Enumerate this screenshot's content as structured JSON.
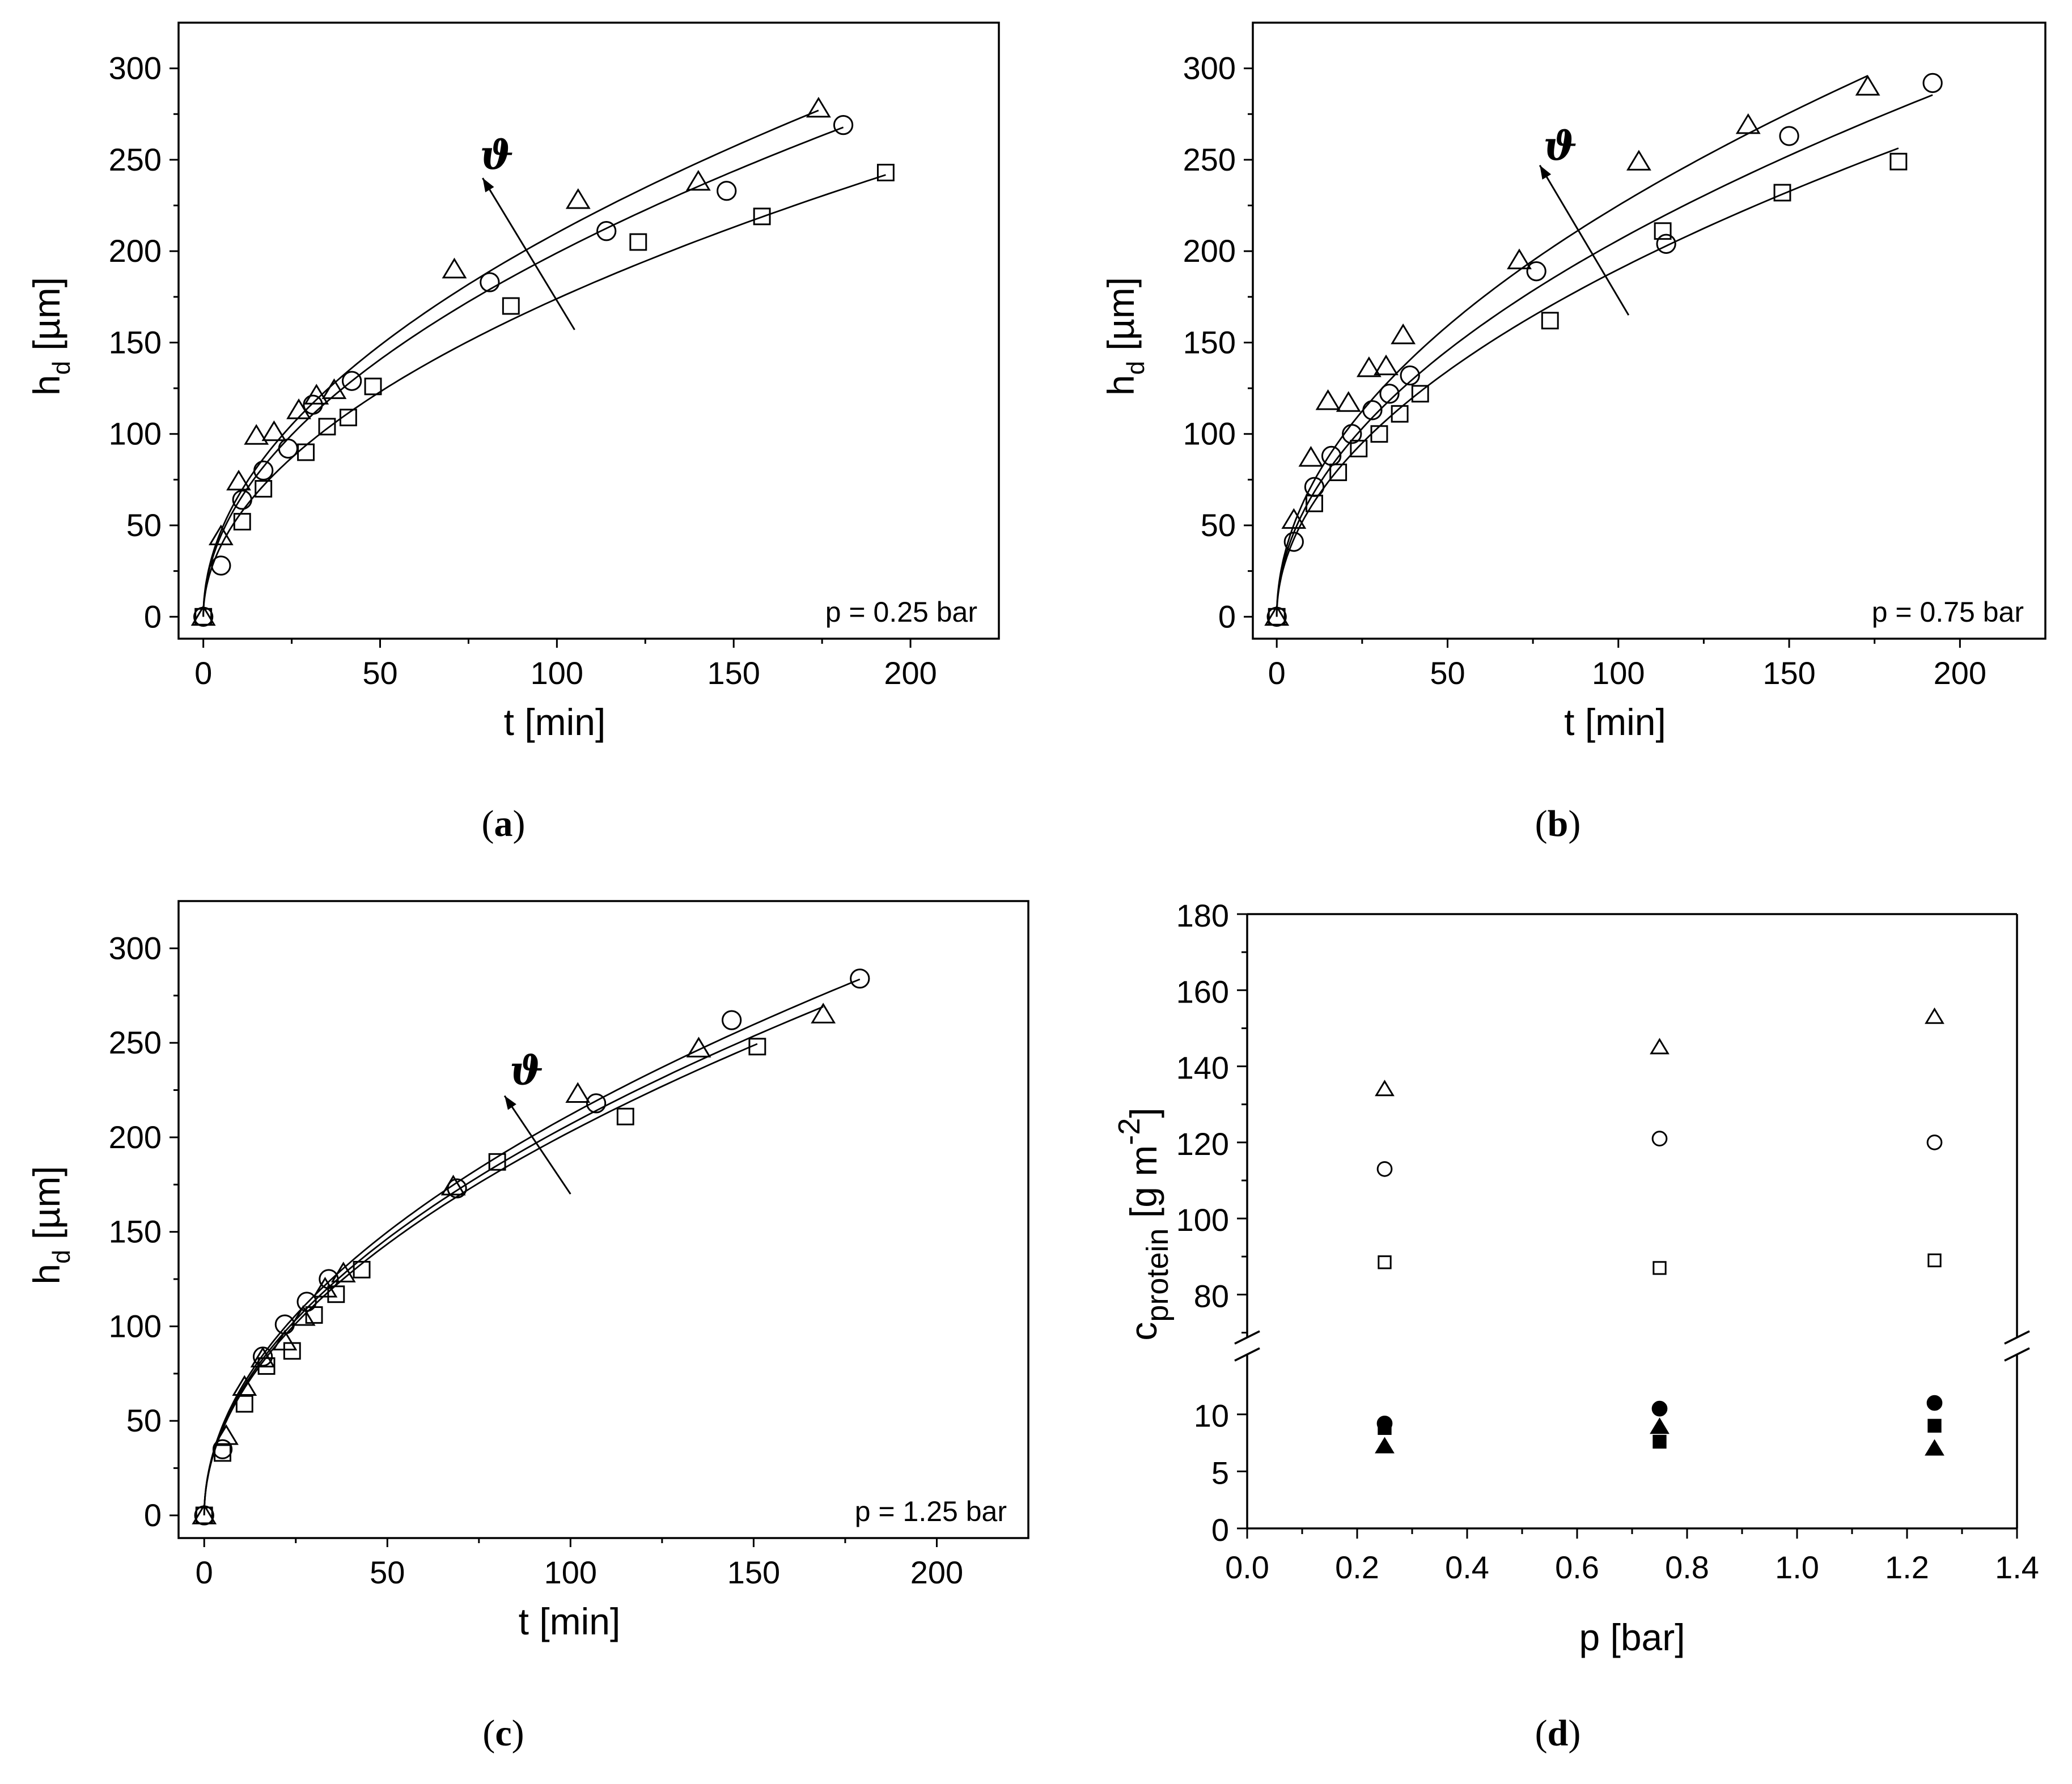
{
  "chart_data": [
    {
      "id": "a",
      "type": "scatter",
      "caption": "a",
      "annotation": "p = 0.25 bar",
      "arrow_label": "ϑ",
      "xlabel": "t [min]",
      "ylabel": "h",
      "ylabel_sub": "d",
      "ylabel_unit": " [µm]",
      "xlim": [
        -7,
        225
      ],
      "ylim": [
        -12,
        325
      ],
      "xticks": [
        0,
        50,
        100,
        150,
        200
      ],
      "yticks": [
        0,
        50,
        100,
        150,
        200,
        250,
        300
      ],
      "series": [
        {
          "marker": "triangle",
          "fit_k": 21.0,
          "points": [
            [
              0,
              0
            ],
            [
              5,
              44
            ],
            [
              10,
              74
            ],
            [
              15,
              99
            ],
            [
              20,
              101
            ],
            [
              27,
              113
            ],
            [
              32,
              121
            ],
            [
              37,
              124
            ],
            [
              71,
              190
            ],
            [
              106,
              228
            ],
            [
              140,
              238
            ],
            [
              174,
              278
            ]
          ]
        },
        {
          "marker": "circle",
          "fit_k": 19.9,
          "points": [
            [
              0,
              0
            ],
            [
              5,
              28
            ],
            [
              11,
              64
            ],
            [
              17,
              80
            ],
            [
              24,
              92
            ],
            [
              31,
              116
            ],
            [
              42,
              129
            ],
            [
              81,
              183
            ],
            [
              114,
              211
            ],
            [
              148,
              233
            ],
            [
              181,
              269
            ]
          ]
        },
        {
          "marker": "square",
          "fit_k": 17.4,
          "points": [
            [
              0,
              0
            ],
            [
              11,
              52
            ],
            [
              17,
              70
            ],
            [
              29,
              90
            ],
            [
              35,
              104
            ],
            [
              41,
              109
            ],
            [
              48,
              126
            ],
            [
              87,
              170
            ],
            [
              123,
              205
            ],
            [
              158,
              219
            ],
            [
              193,
              243
            ]
          ]
        }
      ]
    },
    {
      "id": "b",
      "type": "scatter",
      "caption": "b",
      "annotation": "p = 0.75 bar",
      "arrow_label": "ϑ",
      "xlabel": "t [min]",
      "ylabel": "h",
      "ylabel_sub": "d",
      "ylabel_unit": " [µm]",
      "xlim": [
        -7,
        225
      ],
      "ylim": [
        -12,
        325
      ],
      "xticks": [
        0,
        50,
        100,
        150,
        200
      ],
      "yticks": [
        0,
        50,
        100,
        150,
        200,
        250,
        300
      ],
      "series": [
        {
          "marker": "triangle",
          "fit_k": 22.5,
          "points": [
            [
              0,
              0
            ],
            [
              5,
              53
            ],
            [
              10,
              87
            ],
            [
              15,
              118
            ],
            [
              21,
              117
            ],
            [
              27,
              136
            ],
            [
              32,
              137
            ],
            [
              37,
              154
            ],
            [
              71,
              195
            ],
            [
              106,
              249
            ],
            [
              138,
              269
            ],
            [
              173,
              290
            ]
          ]
        },
        {
          "marker": "circle",
          "fit_k": 20.6,
          "points": [
            [
              0,
              0
            ],
            [
              5,
              41
            ],
            [
              11,
              71
            ],
            [
              16,
              88
            ],
            [
              22,
              100
            ],
            [
              28,
              113
            ],
            [
              33,
              122
            ],
            [
              39,
              132
            ],
            [
              76,
              189
            ],
            [
              114,
              204
            ],
            [
              150,
              263
            ],
            [
              192,
              292
            ]
          ]
        },
        {
          "marker": "square",
          "fit_k": 19.0,
          "points": [
            [
              0,
              0
            ],
            [
              11,
              62
            ],
            [
              18,
              79
            ],
            [
              24,
              92
            ],
            [
              30,
              100
            ],
            [
              36,
              111
            ],
            [
              42,
              122
            ],
            [
              80,
              162
            ],
            [
              113,
              211
            ],
            [
              148,
              232
            ],
            [
              182,
              249
            ]
          ]
        }
      ]
    },
    {
      "id": "c",
      "type": "scatter",
      "caption": "c",
      "annotation": "p = 1.25 bar",
      "arrow_label": "ϑ",
      "xlabel": "t [min]",
      "ylabel": "h",
      "ylabel_sub": "d",
      "ylabel_unit": " [µm]",
      "xlim": [
        -7,
        225
      ],
      "ylim": [
        -12,
        325
      ],
      "xticks": [
        0,
        50,
        100,
        150,
        200
      ],
      "yticks": [
        0,
        50,
        100,
        150,
        200,
        250,
        300
      ],
      "series": [
        {
          "marker": "triangle",
          "fit_k": 20.7,
          "points": [
            [
              0,
              0
            ],
            [
              6,
              42
            ],
            [
              11,
              68
            ],
            [
              16,
              83
            ],
            [
              22,
              92
            ],
            [
              27,
              105
            ],
            [
              33,
              120
            ],
            [
              38,
              128
            ],
            [
              68,
              174
            ],
            [
              102,
              223
            ],
            [
              135,
              247
            ],
            [
              169,
              265
            ]
          ]
        },
        {
          "marker": "circle",
          "fit_k": 21.2,
          "points": [
            [
              0,
              0
            ],
            [
              5,
              35
            ],
            [
              16,
              84
            ],
            [
              22,
              101
            ],
            [
              28,
              113
            ],
            [
              34,
              125
            ],
            [
              69,
              173
            ],
            [
              107,
              218
            ],
            [
              144,
              262
            ],
            [
              179,
              284
            ]
          ]
        },
        {
          "marker": "square",
          "fit_k": 20.3,
          "points": [
            [
              0,
              0
            ],
            [
              5,
              33
            ],
            [
              11,
              59
            ],
            [
              17,
              79
            ],
            [
              24,
              87
            ],
            [
              30,
              106
            ],
            [
              36,
              117
            ],
            [
              43,
              130
            ],
            [
              80,
              187
            ],
            [
              115,
              211
            ],
            [
              151,
              248
            ]
          ]
        }
      ]
    },
    {
      "id": "d",
      "type": "scatter",
      "caption": "d",
      "xlabel": "p [bar]",
      "ylabel": "c",
      "ylabel_sub": "protein",
      "ylabel_unit": " [g m",
      "ylabel_sup": "-2",
      "ylabel_close": "]",
      "xlim": [
        0.0,
        1.4
      ],
      "xticks": [
        "0.0",
        "0.2",
        "0.4",
        "0.6",
        "0.8",
        "1.0",
        "1.2",
        "1.4"
      ],
      "upper_ylim": [
        68,
        180
      ],
      "upper_yticks": [
        80,
        100,
        120,
        140,
        160,
        180
      ],
      "lower_ylim": [
        0,
        15.5
      ],
      "lower_yticks": [
        0,
        5,
        10
      ],
      "series": [
        {
          "marker": "triangle",
          "filled": false,
          "points": [
            [
              0.25,
              134
            ],
            [
              0.75,
              145
            ],
            [
              1.25,
              153
            ]
          ]
        },
        {
          "marker": "circle",
          "filled": false,
          "points": [
            [
              0.25,
              113
            ],
            [
              0.75,
              121
            ],
            [
              1.25,
              120
            ]
          ]
        },
        {
          "marker": "square",
          "filled": false,
          "points": [
            [
              0.25,
              88.5
            ],
            [
              0.75,
              87
            ],
            [
              1.25,
              89
            ]
          ]
        },
        {
          "marker": "circle",
          "filled": true,
          "points": [
            [
              0.25,
              9.2
            ],
            [
              0.75,
              10.5
            ],
            [
              1.25,
              11
            ]
          ]
        },
        {
          "marker": "square",
          "filled": true,
          "points": [
            [
              0.25,
              8.8
            ],
            [
              0.75,
              7.6
            ],
            [
              1.25,
              9
            ]
          ]
        },
        {
          "marker": "triangle",
          "filled": true,
          "points": [
            [
              0.25,
              7.2
            ],
            [
              0.75,
              8.9
            ],
            [
              1.25,
              7
            ]
          ]
        }
      ]
    }
  ]
}
